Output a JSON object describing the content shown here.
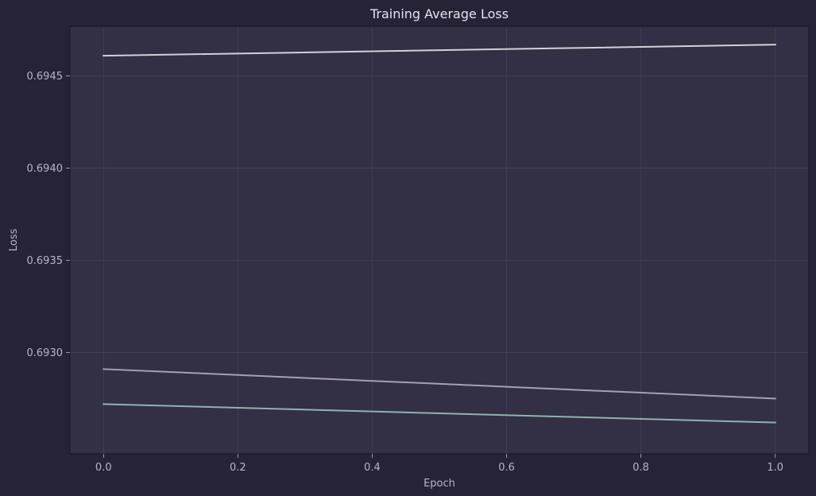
{
  "chart_data": {
    "type": "line",
    "title": "Training Average Loss",
    "xlabel": "Epoch",
    "ylabel": "Loss",
    "xlim": [
      -0.05,
      1.05
    ],
    "ylim": [
      0.69245,
      0.69477
    ],
    "xticks": [
      0.0,
      0.2,
      0.4,
      0.6,
      0.8,
      1.0
    ],
    "xtick_labels": [
      "0.0",
      "0.2",
      "0.4",
      "0.6",
      "0.8",
      "1.0"
    ],
    "yticks": [
      0.693,
      0.6935,
      0.694,
      0.6945
    ],
    "ytick_labels": [
      "0.6930",
      "0.6935",
      "0.6940",
      "0.6945"
    ],
    "grid": true,
    "series": [
      {
        "x": [
          0,
          1
        ],
        "values": [
          0.69461,
          0.69467
        ],
        "color": "#d4d0d8"
      },
      {
        "x": [
          0,
          1
        ],
        "values": [
          0.69291,
          0.69275
        ],
        "color": "#a79fb4"
      },
      {
        "x": [
          0,
          1
        ],
        "values": [
          0.69272,
          0.69262
        ],
        "color": "#8eb3ad"
      }
    ],
    "colors": {
      "background": "#262337",
      "plot_background": "#332f44",
      "grid": "#454157",
      "axes": "#16141f",
      "text": "#b9b5c6",
      "title": "#e6e3ee"
    }
  }
}
